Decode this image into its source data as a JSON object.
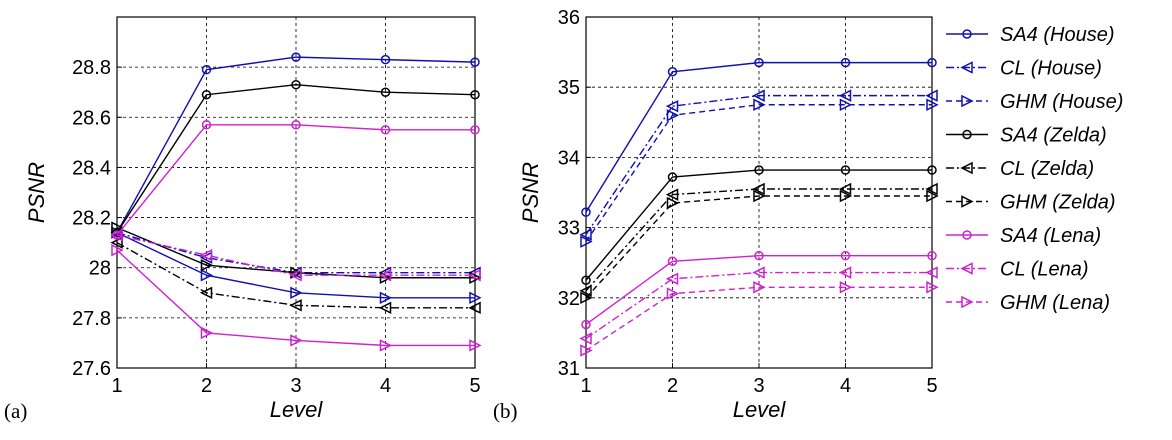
{
  "chart_data": [
    {
      "type": "line",
      "panel_label": "(a)",
      "xlabel": "Level",
      "ylabel": "PSNR",
      "x": [
        1,
        2,
        3,
        4,
        5
      ],
      "xlim": [
        1,
        5
      ],
      "ylim": [
        27.6,
        29.0
      ],
      "yticks": [
        27.6,
        27.8,
        28,
        28.2,
        28.4,
        28.6,
        28.8
      ],
      "ytick_labels": [
        "27.6",
        "27.8",
        "28",
        "28.2",
        "28.4",
        "28.6",
        "28.8"
      ],
      "grid": true,
      "series": [
        {
          "name": "SA4 (House)",
          "color": "#1010b0",
          "marker": "circle",
          "dash": "solid",
          "values": [
            28.14,
            28.79,
            28.84,
            28.83,
            28.82
          ]
        },
        {
          "name": "CL (House)",
          "color": "#1010b0",
          "marker": "triangle-left",
          "dash": "dashdot",
          "values": [
            28.14,
            28.04,
            27.98,
            27.98,
            27.98
          ]
        },
        {
          "name": "GHM (House)",
          "color": "#1010b0",
          "marker": "triangle-right",
          "dash": "solid",
          "values": [
            28.14,
            27.97,
            27.9,
            27.88,
            27.88
          ]
        },
        {
          "name": "SA4 (Zelda)",
          "color": "#000000",
          "marker": "circle",
          "dash": "solid",
          "values": [
            28.14,
            28.69,
            28.73,
            28.7,
            28.69
          ]
        },
        {
          "name": "CL (Zelda)",
          "color": "#000000",
          "marker": "triangle-left",
          "dash": "dashdot",
          "values": [
            28.1,
            27.9,
            27.85,
            27.84,
            27.84
          ]
        },
        {
          "name": "GHM (Zelda)",
          "color": "#000000",
          "marker": "triangle-right",
          "dash": "solid",
          "values": [
            28.16,
            28.01,
            27.98,
            27.96,
            27.96
          ]
        },
        {
          "name": "SA4 (Lena)",
          "color": "#d020d0",
          "marker": "circle",
          "dash": "solid",
          "values": [
            28.13,
            28.57,
            28.57,
            28.55,
            28.55
          ]
        },
        {
          "name": "CL (Lena)",
          "color": "#d020d0",
          "marker": "triangle-left",
          "dash": "dashdot",
          "values": [
            28.13,
            28.05,
            27.97,
            27.97,
            27.97
          ]
        },
        {
          "name": "GHM (Lena)",
          "color": "#d020d0",
          "marker": "triangle-right",
          "dash": "solid",
          "values": [
            28.07,
            27.74,
            27.71,
            27.69,
            27.69
          ]
        }
      ]
    },
    {
      "type": "line",
      "panel_label": "(b)",
      "xlabel": "Level",
      "ylabel": "PSNR",
      "x": [
        1,
        2,
        3,
        4,
        5
      ],
      "xlim": [
        1,
        5
      ],
      "ylim": [
        31,
        36
      ],
      "yticks": [
        31,
        32,
        33,
        34,
        35,
        36
      ],
      "ytick_labels": [
        "31",
        "32",
        "33",
        "34",
        "35",
        "36"
      ],
      "grid": true,
      "legend_position": "right",
      "series": [
        {
          "name": "SA4 (House)",
          "color": "#1010b0",
          "marker": "circle",
          "dash": "solid",
          "values": [
            33.22,
            35.22,
            35.35,
            35.35,
            35.35
          ]
        },
        {
          "name": "CL (House)",
          "color": "#1010b0",
          "marker": "triangle-left",
          "dash": "dashdot",
          "values": [
            32.9,
            34.73,
            34.88,
            34.88,
            34.88
          ]
        },
        {
          "name": "GHM (House)",
          "color": "#1010b0",
          "marker": "triangle-right",
          "dash": "dashed",
          "values": [
            32.8,
            34.6,
            34.75,
            34.75,
            34.75
          ]
        },
        {
          "name": "SA4 (Zelda)",
          "color": "#000000",
          "marker": "circle",
          "dash": "solid",
          "values": [
            32.25,
            33.72,
            33.82,
            33.82,
            33.82
          ]
        },
        {
          "name": "CL (Zelda)",
          "color": "#000000",
          "marker": "triangle-left",
          "dash": "dashdot",
          "values": [
            32.1,
            33.47,
            33.55,
            33.55,
            33.55
          ]
        },
        {
          "name": "GHM (Zelda)",
          "color": "#000000",
          "marker": "triangle-right",
          "dash": "dashed",
          "values": [
            32.0,
            33.35,
            33.45,
            33.45,
            33.45
          ]
        },
        {
          "name": "SA4 (Lena)",
          "color": "#d020d0",
          "marker": "circle",
          "dash": "solid",
          "values": [
            31.62,
            32.52,
            32.6,
            32.6,
            32.6
          ]
        },
        {
          "name": "CL (Lena)",
          "color": "#d020d0",
          "marker": "triangle-left",
          "dash": "dashdot",
          "values": [
            31.42,
            32.27,
            32.36,
            32.36,
            32.36
          ]
        },
        {
          "name": "GHM (Lena)",
          "color": "#d020d0",
          "marker": "triangle-right",
          "dash": "dashed",
          "values": [
            31.25,
            32.06,
            32.15,
            32.15,
            32.15
          ]
        }
      ]
    }
  ]
}
